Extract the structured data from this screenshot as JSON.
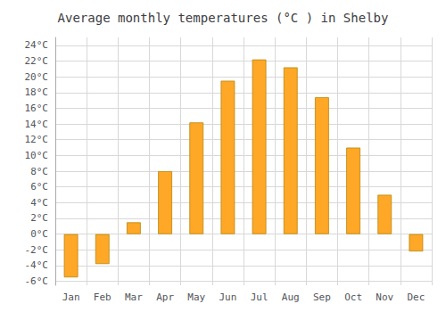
{
  "chart_data": {
    "type": "bar",
    "title": "Average monthly temperatures (°C ) in Shelby",
    "categories": [
      "Jan",
      "Feb",
      "Mar",
      "Apr",
      "May",
      "Jun",
      "Jul",
      "Aug",
      "Sep",
      "Oct",
      "Nov",
      "Dec"
    ],
    "values": [
      -5.5,
      -3.8,
      1.5,
      8.0,
      14.2,
      19.5,
      22.2,
      21.2,
      17.4,
      11.0,
      5.0,
      -2.2
    ],
    "color": "#FFA726",
    "ylim": [
      -6.5,
      25
    ],
    "yticks": [
      {
        "value": -6,
        "label": "-6°C"
      },
      {
        "value": -4,
        "label": "-4°C"
      },
      {
        "value": -2,
        "label": "-2°C"
      },
      {
        "value": 0,
        "label": "0°C"
      },
      {
        "value": 2,
        "label": "2°C"
      },
      {
        "value": 4,
        "label": "4°C"
      },
      {
        "value": 6,
        "label": "6°C"
      },
      {
        "value": 8,
        "label": "8°C"
      },
      {
        "value": 10,
        "label": "10°C"
      },
      {
        "value": 12,
        "label": "12°C"
      },
      {
        "value": 14,
        "label": "14°C"
      },
      {
        "value": 16,
        "label": "16°C"
      },
      {
        "value": 18,
        "label": "18°C"
      },
      {
        "value": 20,
        "label": "20°C"
      },
      {
        "value": 22,
        "label": "22°C"
      },
      {
        "value": 24,
        "label": "24°C"
      }
    ],
    "grid": true
  }
}
